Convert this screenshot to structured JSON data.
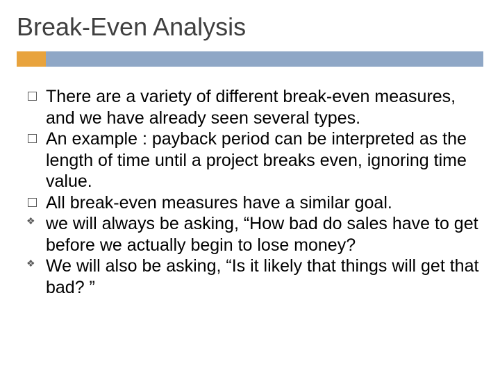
{
  "title": "Break-Even Analysis",
  "accent": {
    "orange": "#e8a33d",
    "blue": "#8fa7c6"
  },
  "body_fontsize": 25,
  "title_fontsize": 36,
  "title_color": "#3f3f3f",
  "bullets": {
    "level1": [
      "There are a variety of different break-even measures, and we have already seen several types.",
      "An example : payback period can be interpreted as the length of time until a project breaks even, ignoring time value.",
      "All break-even measures have a similar goal."
    ],
    "level2": [
      "we will always be asking, “How bad do sales have to get before we actually begin to lose money?",
      "We will also be asking, “Is it likely that things will get that bad? ”"
    ]
  }
}
